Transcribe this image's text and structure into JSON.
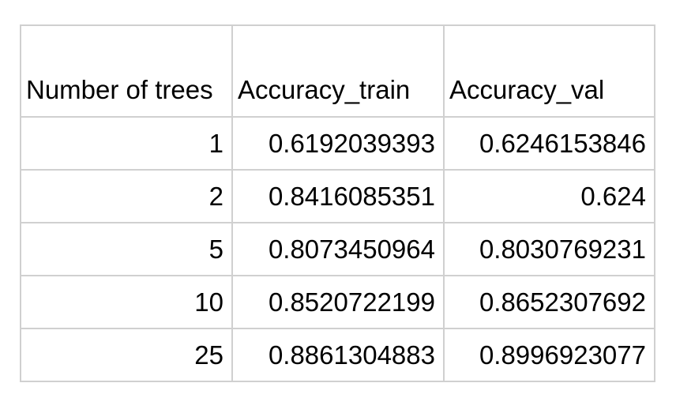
{
  "table": {
    "headers": [
      "Number of trees",
      "Accuracy_train",
      "Accuracy_val"
    ],
    "rows": [
      [
        "1",
        "0.6192039393",
        "0.6246153846"
      ],
      [
        "2",
        "0.8416085351",
        "0.624"
      ],
      [
        "5",
        "0.8073450964",
        "0.8030769231"
      ],
      [
        "10",
        "0.8520722199",
        "0.8652307692"
      ],
      [
        "25",
        "0.8861304883",
        "0.8996923077"
      ]
    ]
  },
  "colors": {
    "grid": "#d0d0d0",
    "text": "#000000",
    "background": "#ffffff"
  }
}
